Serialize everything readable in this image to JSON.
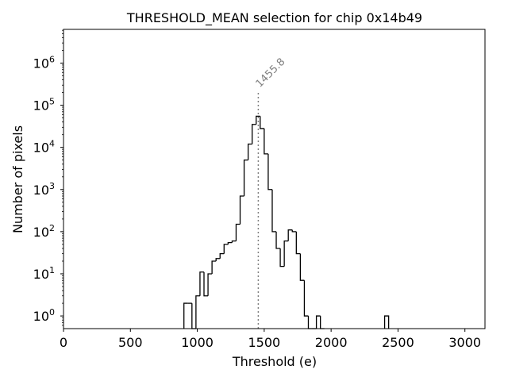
{
  "chart_data": {
    "type": "histogram",
    "title": "THRESHOLD_MEAN selection for chip 0x14b49",
    "xlabel": "Threshold (e)",
    "ylabel": "Number of pixels",
    "xlim": [
      0,
      3150
    ],
    "ylim_log10": [
      -0.3,
      6.8
    ],
    "yscale": "log",
    "x_ticks": [
      {
        "value": 0,
        "label": "0"
      },
      {
        "value": 500,
        "label": "500"
      },
      {
        "value": 1000,
        "label": "1000"
      },
      {
        "value": 1500,
        "label": "1500"
      },
      {
        "value": 2000,
        "label": "2000"
      },
      {
        "value": 2500,
        "label": "2500"
      },
      {
        "value": 3000,
        "label": "3000"
      }
    ],
    "y_ticks": [
      {
        "exp": 0,
        "base": "10",
        "power": "0"
      },
      {
        "exp": 1,
        "base": "10",
        "power": "1"
      },
      {
        "exp": 2,
        "base": "10",
        "power": "2"
      },
      {
        "exp": 3,
        "base": "10",
        "power": "3"
      },
      {
        "exp": 4,
        "base": "10",
        "power": "4"
      },
      {
        "exp": 5,
        "base": "10",
        "power": "5"
      },
      {
        "exp": 6,
        "base": "10",
        "power": "6"
      }
    ],
    "bin_width": 30,
    "bins": [
      {
        "x0": 900,
        "count": 2
      },
      {
        "x0": 930,
        "count": 2
      },
      {
        "x0": 960,
        "count": 0
      },
      {
        "x0": 990,
        "count": 3
      },
      {
        "x0": 1020,
        "count": 11
      },
      {
        "x0": 1050,
        "count": 3
      },
      {
        "x0": 1080,
        "count": 10
      },
      {
        "x0": 1110,
        "count": 20
      },
      {
        "x0": 1140,
        "count": 23
      },
      {
        "x0": 1170,
        "count": 30
      },
      {
        "x0": 1200,
        "count": 50
      },
      {
        "x0": 1230,
        "count": 55
      },
      {
        "x0": 1260,
        "count": 60
      },
      {
        "x0": 1290,
        "count": 150
      },
      {
        "x0": 1320,
        "count": 700
      },
      {
        "x0": 1350,
        "count": 5000
      },
      {
        "x0": 1380,
        "count": 12000
      },
      {
        "x0": 1410,
        "count": 35000
      },
      {
        "x0": 1440,
        "count": 55000
      },
      {
        "x0": 1470,
        "count": 28000
      },
      {
        "x0": 1500,
        "count": 7000
      },
      {
        "x0": 1530,
        "count": 1000
      },
      {
        "x0": 1560,
        "count": 100
      },
      {
        "x0": 1590,
        "count": 40
      },
      {
        "x0": 1620,
        "count": 15
      },
      {
        "x0": 1650,
        "count": 60
      },
      {
        "x0": 1680,
        "count": 110
      },
      {
        "x0": 1710,
        "count": 100
      },
      {
        "x0": 1740,
        "count": 30
      },
      {
        "x0": 1770,
        "count": 7
      },
      {
        "x0": 1800,
        "count": 1
      },
      {
        "x0": 1830,
        "count": 0
      },
      {
        "x0": 1860,
        "count": 0
      },
      {
        "x0": 1890,
        "count": 1
      },
      {
        "x0": 1920,
        "count": 0
      },
      {
        "x0": 2400,
        "count": 1
      }
    ],
    "annotation": {
      "x": 1455.8,
      "label": "1455.8",
      "top_value": 200000
    }
  }
}
